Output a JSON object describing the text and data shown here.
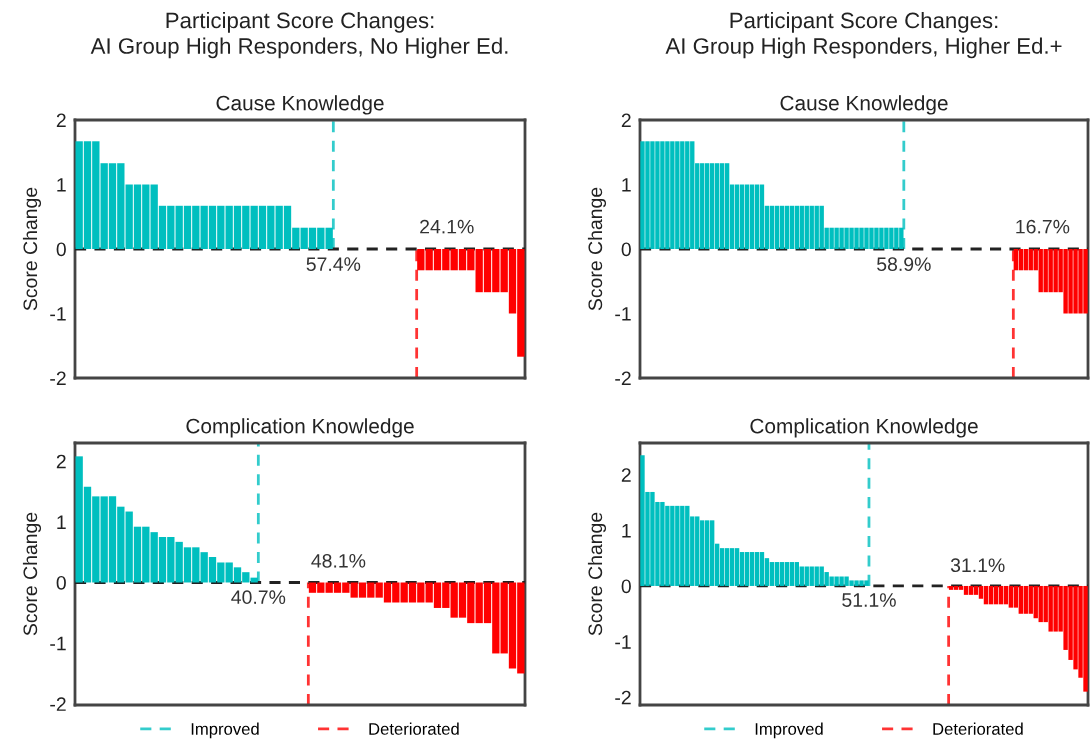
{
  "chart_data": [
    {
      "type": "bar",
      "title": "Participant Score Changes:\nAI Group High Responders, No Higher Ed.",
      "subtitle": "Cause Knowledge",
      "ylabel": "Score Change",
      "ylim": [
        -2,
        2
      ],
      "yticks": [
        -2,
        -1,
        0,
        1,
        2
      ],
      "tick_labels": "y",
      "grid": false,
      "categories": [
        null,
        null,
        null,
        null,
        null,
        null,
        null,
        null,
        null,
        null,
        null,
        null,
        null,
        null,
        null,
        null,
        null,
        null,
        null,
        null,
        null,
        null,
        null,
        null,
        null,
        null,
        null,
        null,
        null,
        null,
        null,
        null,
        null,
        null,
        null,
        null,
        null,
        null,
        null,
        null,
        null,
        null,
        null,
        null,
        null,
        null,
        null,
        null,
        null,
        null,
        null,
        null,
        null,
        null
      ],
      "series": [
        {
          "color": "#00bfbf",
          "values": [
            1.67,
            1.67,
            1.67,
            1.33,
            1.33,
            1.33,
            1,
            1,
            1,
            1,
            0.67,
            0.67,
            0.67,
            0.67,
            0.67,
            0.67,
            0.67,
            0.67,
            0.67,
            0.67,
            0.67,
            0.67,
            0.67,
            0.67,
            0.67,
            0.67,
            0.33,
            0.33,
            0.33,
            0.33,
            0.33,
            null,
            null,
            null,
            null,
            null,
            null,
            null,
            null,
            null,
            null,
            null,
            null,
            null,
            null,
            null,
            null,
            null,
            null,
            null,
            null,
            null,
            null,
            null
          ]
        },
        {
          "color": "#ff0000",
          "values": [
            null,
            null,
            null,
            null,
            null,
            null,
            null,
            null,
            null,
            null,
            null,
            null,
            null,
            null,
            null,
            null,
            null,
            null,
            null,
            null,
            null,
            null,
            null,
            null,
            null,
            null,
            null,
            null,
            null,
            null,
            null,
            null,
            null,
            null,
            null,
            null,
            null,
            null,
            null,
            null,
            null,
            -0.33,
            -0.33,
            -0.33,
            -0.33,
            -0.33,
            -0.33,
            -0.33,
            -0.67,
            -0.67,
            -0.67,
            -0.67,
            -1,
            -1.67
          ]
        }
      ],
      "ref_lines": [
        {
          "axis": "y",
          "value": 0,
          "color": "#222222",
          "line_style": "dashed"
        }
      ],
      "annotations": [
        "57.4%",
        "24.1%"
      ]
    },
    {
      "type": "bar",
      "title": "Participant Score Changes:\nAI Group High Responders, Higher Ed.+",
      "subtitle": "Cause Knowledge",
      "ylabel": "Score Change",
      "ylim": [
        -2,
        2
      ],
      "yticks": [
        -2,
        -1,
        0,
        1,
        2
      ],
      "tick_labels": "y",
      "grid": false,
      "categories": [
        null,
        null,
        null,
        null,
        null,
        null,
        null,
        null,
        null,
        null,
        null,
        null,
        null,
        null,
        null,
        null,
        null,
        null,
        null,
        null,
        null,
        null,
        null,
        null,
        null,
        null,
        null,
        null,
        null,
        null,
        null,
        null,
        null,
        null,
        null,
        null,
        null,
        null,
        null,
        null,
        null,
        null,
        null,
        null,
        null,
        null,
        null,
        null,
        null,
        null,
        null,
        null,
        null,
        null,
        null,
        null,
        null,
        null,
        null,
        null,
        null,
        null,
        null,
        null,
        null,
        null,
        null,
        null,
        null,
        null,
        null,
        null,
        null,
        null,
        null,
        null,
        null,
        null,
        null,
        null,
        null,
        null,
        null,
        null,
        null,
        null,
        null,
        null,
        null,
        null
      ],
      "series": [
        {
          "color": "#00bfbf",
          "values": [
            1.67,
            1.67,
            1.67,
            1.67,
            1.67,
            1.67,
            1.67,
            1.67,
            1.67,
            1.67,
            1.67,
            1.33,
            1.33,
            1.33,
            1.33,
            1.33,
            1.33,
            1.33,
            1,
            1,
            1,
            1,
            1,
            1,
            1,
            0.67,
            0.67,
            0.67,
            0.67,
            0.67,
            0.67,
            0.67,
            0.67,
            0.67,
            0.67,
            0.67,
            0.67,
            0.33,
            0.33,
            0.33,
            0.33,
            0.33,
            0.33,
            0.33,
            0.33,
            0.33,
            0.33,
            0.33,
            0.33,
            0.33,
            0.33,
            0.33,
            0.33,
            null,
            null,
            null,
            null,
            null,
            null,
            null,
            null,
            null,
            null,
            null,
            null,
            null,
            null,
            null,
            null,
            null,
            null,
            null,
            null,
            null,
            null,
            null,
            null,
            null,
            null,
            null,
            null,
            null,
            null,
            null,
            null,
            null,
            null,
            null,
            null,
            null
          ]
        },
        {
          "color": "#ff0000",
          "values": [
            null,
            null,
            null,
            null,
            null,
            null,
            null,
            null,
            null,
            null,
            null,
            null,
            null,
            null,
            null,
            null,
            null,
            null,
            null,
            null,
            null,
            null,
            null,
            null,
            null,
            null,
            null,
            null,
            null,
            null,
            null,
            null,
            null,
            null,
            null,
            null,
            null,
            null,
            null,
            null,
            null,
            null,
            null,
            null,
            null,
            null,
            null,
            null,
            null,
            null,
            null,
            null,
            null,
            null,
            null,
            null,
            null,
            null,
            null,
            null,
            null,
            null,
            null,
            null,
            null,
            null,
            null,
            null,
            null,
            null,
            null,
            null,
            null,
            null,
            null,
            -0.33,
            -0.33,
            -0.33,
            -0.33,
            -0.33,
            -0.67,
            -0.67,
            -0.67,
            -0.67,
            -0.67,
            -1,
            -1,
            -1,
            -1,
            -1
          ]
        }
      ],
      "ref_lines": [
        {
          "axis": "y",
          "value": 0,
          "color": "#222222",
          "line_style": "dashed"
        }
      ],
      "annotations": [
        "58.9%",
        "16.7%"
      ]
    },
    {
      "type": "bar",
      "subtitle": "Complication Knowledge",
      "ylabel": "Score Change",
      "ylim": [
        -2.02,
        2.3
      ],
      "yticks": [
        -2,
        -1,
        0,
        1,
        2
      ],
      "tick_labels": "y",
      "grid": false,
      "legend": "bottom",
      "categories": [
        null,
        null,
        null,
        null,
        null,
        null,
        null,
        null,
        null,
        null,
        null,
        null,
        null,
        null,
        null,
        null,
        null,
        null,
        null,
        null,
        null,
        null,
        null,
        null,
        null,
        null,
        null,
        null,
        null,
        null,
        null,
        null,
        null,
        null,
        null,
        null,
        null,
        null,
        null,
        null,
        null,
        null,
        null,
        null,
        null,
        null,
        null,
        null,
        null,
        null,
        null,
        null,
        null,
        null
      ],
      "series": [
        {
          "name": "Improved",
          "color": "#00bfbf",
          "values": [
            2.08,
            1.58,
            1.42,
            1.42,
            1.42,
            1.25,
            1.17,
            0.92,
            0.92,
            0.83,
            0.75,
            0.75,
            0.67,
            0.58,
            0.58,
            0.5,
            0.42,
            0.33,
            0.33,
            0.25,
            0.17,
            0.08,
            null,
            null,
            null,
            null,
            null,
            null,
            null,
            null,
            null,
            null,
            null,
            null,
            null,
            null,
            null,
            null,
            null,
            null,
            null,
            null,
            null,
            null,
            null,
            null,
            null,
            null,
            null,
            null,
            null,
            null,
            null,
            null
          ]
        },
        {
          "name": "Deteriorated",
          "color": "#ff0000",
          "values": [
            null,
            null,
            null,
            null,
            null,
            null,
            null,
            null,
            null,
            null,
            null,
            null,
            null,
            null,
            null,
            null,
            null,
            null,
            null,
            null,
            null,
            null,
            null,
            null,
            null,
            null,
            null,
            null,
            -0.17,
            -0.17,
            -0.17,
            -0.17,
            -0.17,
            -0.25,
            -0.25,
            -0.25,
            -0.25,
            -0.33,
            -0.33,
            -0.33,
            -0.33,
            -0.33,
            -0.33,
            -0.42,
            -0.42,
            -0.58,
            -0.58,
            -0.67,
            -0.67,
            -0.67,
            -1.17,
            -1.17,
            -1.42,
            -1.5
          ]
        }
      ],
      "ref_lines": [
        {
          "axis": "y",
          "value": 0,
          "color": "#222222",
          "line_style": "dashed"
        }
      ],
      "annotations": [
        "40.7%",
        "48.1%"
      ]
    },
    {
      "type": "bar",
      "subtitle": "Complication Knowledge",
      "ylabel": "Score Change",
      "ylim": [
        -2.14,
        2.57
      ],
      "yticks": [
        -2,
        -1,
        0,
        1,
        2
      ],
      "tick_labels": "y",
      "grid": false,
      "legend": "bottom",
      "categories": [
        null,
        null,
        null,
        null,
        null,
        null,
        null,
        null,
        null,
        null,
        null,
        null,
        null,
        null,
        null,
        null,
        null,
        null,
        null,
        null,
        null,
        null,
        null,
        null,
        null,
        null,
        null,
        null,
        null,
        null,
        null,
        null,
        null,
        null,
        null,
        null,
        null,
        null,
        null,
        null,
        null,
        null,
        null,
        null,
        null,
        null,
        null,
        null,
        null,
        null,
        null,
        null,
        null,
        null,
        null,
        null,
        null,
        null,
        null,
        null,
        null,
        null,
        null,
        null,
        null,
        null,
        null,
        null,
        null,
        null,
        null,
        null,
        null,
        null,
        null,
        null,
        null,
        null,
        null,
        null,
        null,
        null,
        null,
        null,
        null,
        null,
        null,
        null,
        null,
        null
      ],
      "series": [
        {
          "name": "Improved",
          "color": "#00bfbf",
          "values": [
            2.35,
            1.69,
            1.69,
            1.51,
            1.51,
            1.44,
            1.44,
            1.44,
            1.44,
            1.44,
            1.25,
            1.25,
            1.18,
            1.18,
            1.18,
            0.76,
            0.68,
            0.68,
            0.68,
            0.68,
            0.61,
            0.61,
            0.61,
            0.61,
            0.61,
            0.5,
            0.43,
            0.43,
            0.43,
            0.43,
            0.43,
            0.43,
            0.35,
            0.35,
            0.35,
            0.35,
            0.35,
            0.25,
            0.17,
            0.17,
            0.17,
            0.17,
            0.1,
            0.1,
            0.1,
            0.1,
            null,
            null,
            null,
            null,
            null,
            null,
            null,
            null,
            null,
            null,
            null,
            null,
            null,
            null,
            null,
            null,
            null,
            null,
            null,
            null,
            null,
            null,
            null,
            null,
            null,
            null,
            null,
            null,
            null,
            null,
            null,
            null,
            null,
            null,
            null,
            null,
            null,
            null,
            null,
            null,
            null,
            null,
            null,
            null
          ]
        },
        {
          "name": "Deteriorated",
          "color": "#ff0000",
          "values": [
            null,
            null,
            null,
            null,
            null,
            null,
            null,
            null,
            null,
            null,
            null,
            null,
            null,
            null,
            null,
            null,
            null,
            null,
            null,
            null,
            null,
            null,
            null,
            null,
            null,
            null,
            null,
            null,
            null,
            null,
            null,
            null,
            null,
            null,
            null,
            null,
            null,
            null,
            null,
            null,
            null,
            null,
            null,
            null,
            null,
            null,
            null,
            null,
            null,
            null,
            null,
            null,
            null,
            null,
            null,
            null,
            null,
            null,
            null,
            null,
            null,
            null,
            -0.07,
            -0.07,
            -0.07,
            -0.16,
            -0.16,
            -0.16,
            -0.23,
            -0.33,
            -0.33,
            -0.33,
            -0.33,
            -0.33,
            -0.39,
            -0.39,
            -0.5,
            -0.5,
            -0.5,
            -0.58,
            -0.65,
            -0.65,
            -0.82,
            -0.82,
            -0.82,
            -1.15,
            -1.33,
            -1.5,
            -1.65,
            -1.9
          ]
        }
      ],
      "ref_lines": [
        {
          "axis": "y",
          "value": 0,
          "color": "#222222",
          "line_style": "dashed"
        }
      ],
      "annotations": [
        "51.1%",
        "31.1%"
      ]
    }
  ]
}
